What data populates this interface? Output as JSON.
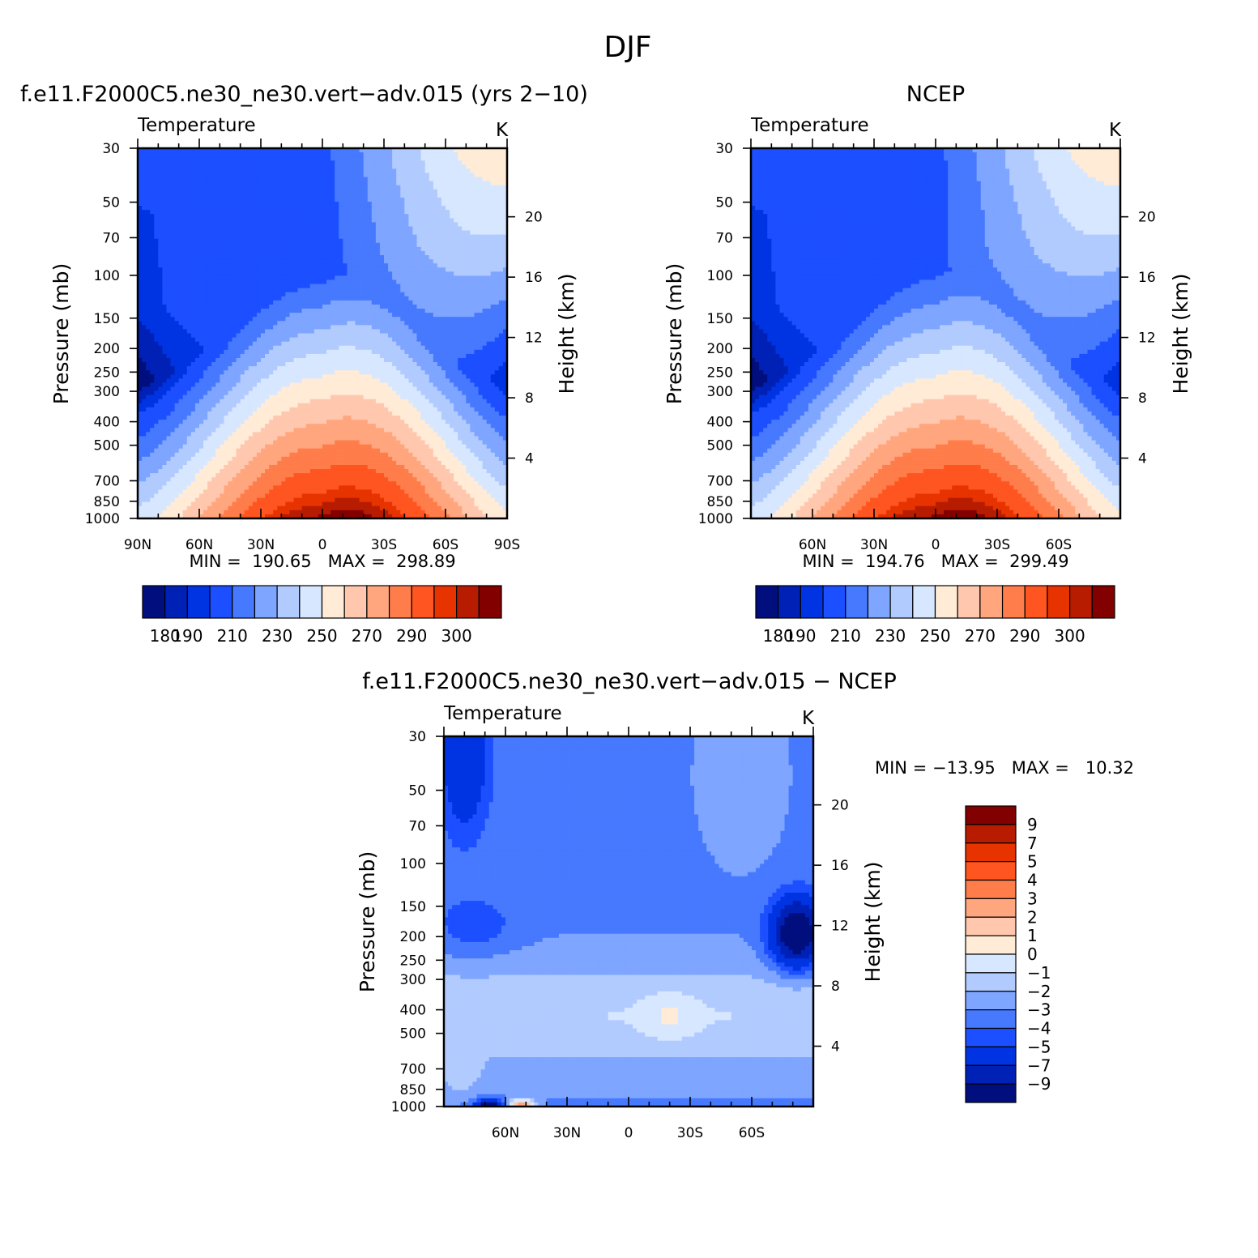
{
  "figure": {
    "title": "DJF"
  },
  "palette": {
    "temperature": [
      "#000e7e",
      "#0021b6",
      "#0034e2",
      "#1c4fff",
      "#4779ff",
      "#7ea5ff",
      "#b1cbff",
      "#d6e7ff",
      "#ffebd6",
      "#ffc8ae",
      "#ffa67f",
      "#ff7d4a",
      "#ff5520",
      "#e63300",
      "#b81c00",
      "#830000"
    ],
    "difference": [
      "#000e7e",
      "#0021b6",
      "#0034e2",
      "#1c4fff",
      "#4779ff",
      "#7ea5ff",
      "#b1cbff",
      "#d6e7ff",
      "#ffebd6",
      "#ffc8ae",
      "#ffa67f",
      "#ff7d4a",
      "#ff5520",
      "#e63300",
      "#b81c00",
      "#830000"
    ]
  },
  "chart_data": [
    {
      "id": "model",
      "type": "heatmap",
      "title": "f.e11.F2000C5.ne30_ne30.vert−adv.015 (yrs 2−10)",
      "left_label": "Temperature",
      "right_label": "K",
      "ylabel": "Pressure (mb)",
      "ylabel_right": "Height (km)",
      "x_ticks": [
        "90N",
        "60N",
        "30N",
        "0",
        "30S",
        "60S",
        "90S"
      ],
      "x_values": [
        90,
        60,
        30,
        0,
        -30,
        -60,
        -90
      ],
      "xlim": [
        90,
        -90
      ],
      "y_ticks": [
        "30",
        "50",
        "70",
        "100",
        "150",
        "200",
        "250",
        "300",
        "400",
        "500",
        "700",
        "850",
        "1000"
      ],
      "y_values": [
        30,
        50,
        70,
        100,
        150,
        200,
        250,
        300,
        400,
        500,
        700,
        850,
        1000
      ],
      "ylim": [
        1000,
        30
      ],
      "height_ticks": [
        "20",
        "16",
        "12",
        "8",
        "4"
      ],
      "height_values": [
        20,
        16,
        12,
        8,
        4
      ],
      "stats": "MIN =  190.65   MAX =  298.89",
      "min": 190.65,
      "max": 298.89,
      "colorbar_labels": [
        "180",
        "190",
        "210",
        "230",
        "250",
        "270",
        "290",
        "300"
      ],
      "levels": [
        175,
        180,
        185,
        190,
        200,
        210,
        220,
        230,
        240,
        250,
        260,
        270,
        280,
        290,
        295,
        300
      ]
    },
    {
      "id": "obs",
      "type": "heatmap",
      "title": "NCEP",
      "left_label": "Temperature",
      "right_label": "K",
      "ylabel": "Pressure (mb)",
      "ylabel_right": "Height (km)",
      "x_ticks": [
        "60N",
        "30N",
        "0",
        "30S",
        "60S"
      ],
      "x_values": [
        60,
        30,
        0,
        -30,
        -60
      ],
      "xlim": [
        90,
        -90
      ],
      "y_ticks": [
        "30",
        "50",
        "70",
        "100",
        "150",
        "200",
        "250",
        "300",
        "400",
        "500",
        "700",
        "850",
        "1000"
      ],
      "y_values": [
        30,
        50,
        70,
        100,
        150,
        200,
        250,
        300,
        400,
        500,
        700,
        850,
        1000
      ],
      "ylim": [
        1000,
        30
      ],
      "height_ticks": [
        "20",
        "16",
        "12",
        "8",
        "4"
      ],
      "height_values": [
        20,
        16,
        12,
        8,
        4
      ],
      "stats": "MIN =  194.76   MAX =  299.49",
      "min": 194.76,
      "max": 299.49,
      "colorbar_labels": [
        "180",
        "190",
        "210",
        "230",
        "250",
        "270",
        "290",
        "300"
      ],
      "levels": [
        175,
        180,
        185,
        190,
        200,
        210,
        220,
        230,
        240,
        250,
        260,
        270,
        280,
        290,
        295,
        300
      ]
    },
    {
      "id": "diff",
      "type": "heatmap",
      "title": "f.e11.F2000C5.ne30_ne30.vert−adv.015 − NCEP",
      "left_label": "Temperature",
      "right_label": "K",
      "ylabel": "Pressure (mb)",
      "ylabel_right": "Height (km)",
      "x_ticks": [
        "60N",
        "30N",
        "0",
        "30S",
        "60S"
      ],
      "x_values": [
        60,
        30,
        0,
        -30,
        -60
      ],
      "xlim": [
        90,
        -90
      ],
      "y_ticks": [
        "30",
        "50",
        "70",
        "100",
        "150",
        "200",
        "250",
        "300",
        "400",
        "500",
        "700",
        "850",
        "1000"
      ],
      "y_values": [
        30,
        50,
        70,
        100,
        150,
        200,
        250,
        300,
        400,
        500,
        700,
        850,
        1000
      ],
      "ylim": [
        1000,
        30
      ],
      "height_ticks": [
        "20",
        "16",
        "12",
        "8",
        "4"
      ],
      "height_values": [
        20,
        16,
        12,
        8,
        4
      ],
      "stats": "MIN = −13.95   MAX =   10.32",
      "min": -13.95,
      "max": 10.32,
      "colorbar_labels": [
        "9",
        "7",
        "5",
        "4",
        "3",
        "2",
        "1",
        "0",
        "−1",
        "−2",
        "−3",
        "−4",
        "−5",
        "−7",
        "−9"
      ],
      "levels": [
        -11,
        -9,
        -7,
        -5,
        -4,
        -3,
        -2,
        -1,
        0,
        1,
        2,
        3,
        4,
        5,
        7,
        9,
        11
      ]
    }
  ]
}
